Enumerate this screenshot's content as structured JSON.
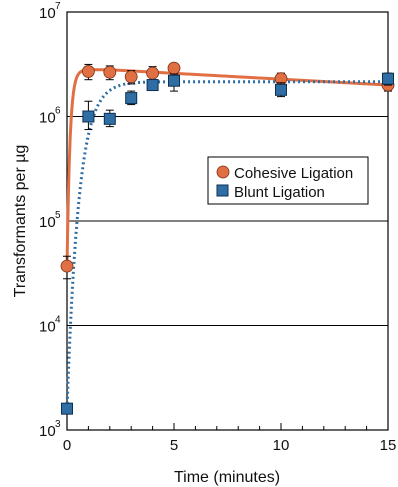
{
  "chart_data": {
    "type": "scatter",
    "title": "",
    "xlabel": "Time (minutes)",
    "ylabel": "Transformants per µg",
    "xlim": [
      0,
      15
    ],
    "ylim": [
      1000,
      10000000
    ],
    "yscale": "log",
    "x_ticks": [
      0,
      5,
      10,
      15
    ],
    "y_ticks": [
      {
        "value": 1000,
        "base": "10",
        "exp": "3"
      },
      {
        "value": 10000,
        "base": "10",
        "exp": "4"
      },
      {
        "value": 100000,
        "base": "10",
        "exp": "5"
      },
      {
        "value": 1000000,
        "base": "10",
        "exp": "6"
      },
      {
        "value": 10000000,
        "base": "10",
        "exp": "7"
      }
    ],
    "grid": "horizontal",
    "legend_position": "center-right",
    "series": [
      {
        "name": "Cohesive Ligation",
        "marker": "circle",
        "color": "#e06f44",
        "curve_style": "solid",
        "x": [
          0,
          1,
          2,
          3,
          4,
          5,
          10,
          15
        ],
        "y": [
          37000,
          2700000,
          2650000,
          2400000,
          2600000,
          2900000,
          2300000,
          2000000
        ],
        "err_low": [
          28000,
          2250000,
          2250000,
          2050000,
          2200000,
          2650000,
          2000000,
          1750000
        ],
        "err_high": [
          46000,
          3150000,
          3050000,
          2750000,
          3000000,
          3150000,
          2600000,
          2250000
        ]
      },
      {
        "name": "Blunt Ligation",
        "marker": "square",
        "color": "#2f6ea4",
        "curve_style": "dotted",
        "x": [
          0,
          1,
          2,
          3,
          4,
          5,
          10,
          15
        ],
        "y": [
          1600,
          1000000,
          950000,
          1500000,
          2000000,
          2200000,
          1800000,
          2300000
        ],
        "err_low": [
          1450,
          750000,
          800000,
          1300000,
          1800000,
          1750000,
          1550000,
          2000000
        ],
        "err_high": [
          1750,
          1400000,
          1150000,
          1750000,
          2250000,
          2550000,
          2100000,
          2600000
        ]
      }
    ]
  }
}
